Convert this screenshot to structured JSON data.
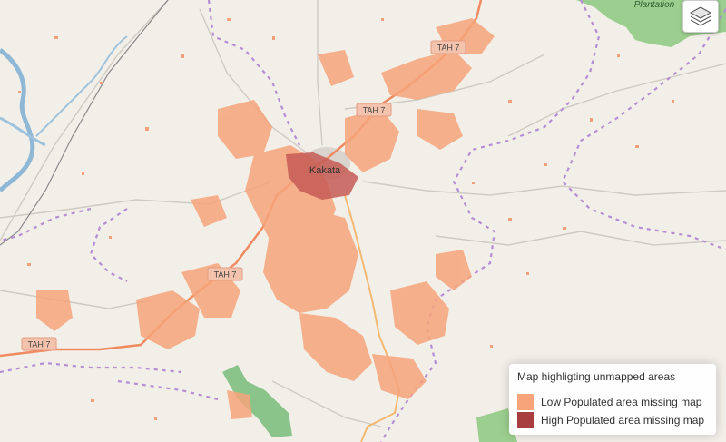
{
  "places": {
    "town": "Kakata",
    "plantation": "Plantation"
  },
  "roads": {
    "tah7_a": "TAH 7",
    "tah7_b": "TAH 7",
    "tah7_c": "TAH 7",
    "tah7_d": "TAH 7"
  },
  "legend": {
    "title": "Map highligting unmapped areas",
    "items": [
      {
        "label": "Low Populated area missing map",
        "color": "#f7a47b"
      },
      {
        "label": "High Populated area missing map",
        "color": "#a83e40"
      }
    ]
  },
  "controls": {
    "layers_icon": "layers-icon"
  },
  "colors": {
    "background": "#f2efe9",
    "road_primary": "#f08a60",
    "road_secondary": "#f5b872",
    "boundary": "#b58ed4",
    "river": "#8fb8d6",
    "forest": "#8bc48a",
    "urban": "#d9d4ce"
  }
}
